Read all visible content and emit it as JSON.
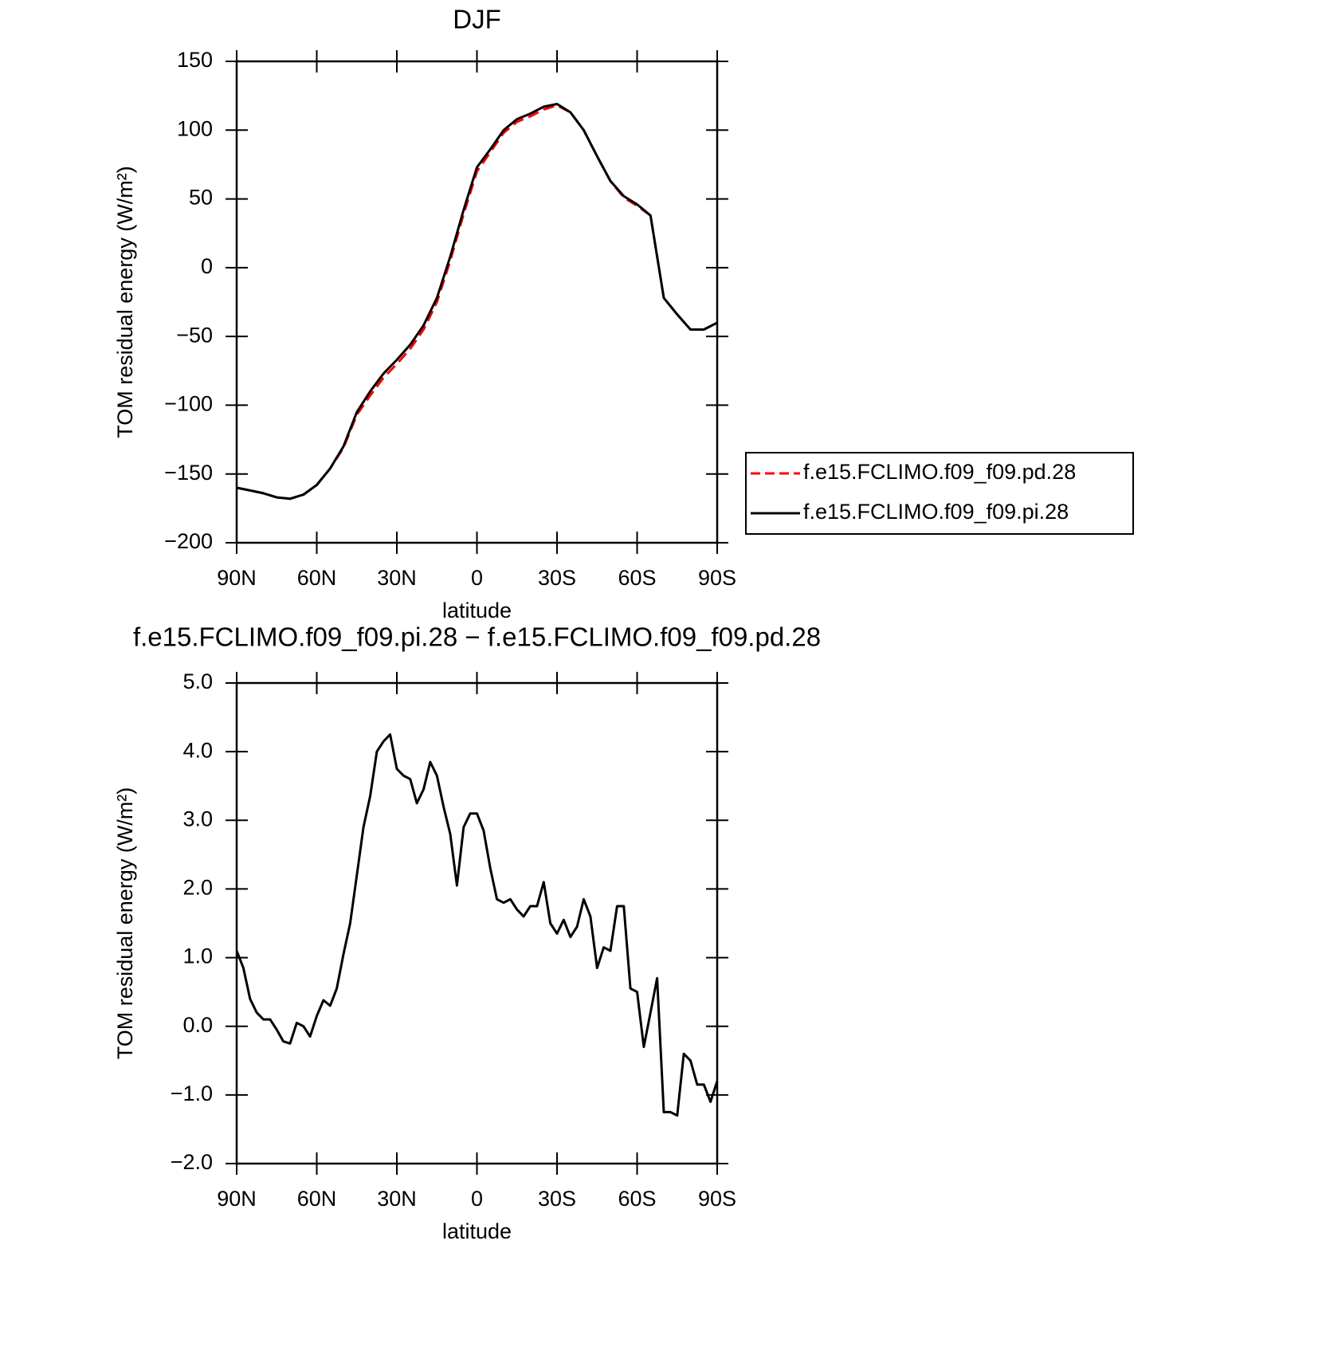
{
  "chart_data": [
    {
      "type": "line",
      "title": "DJF",
      "xlabel": "latitude",
      "ylabel": "TOM residual energy (W/m²)",
      "x": [
        90,
        85,
        80,
        75,
        70,
        65,
        60,
        55,
        50,
        45,
        40,
        35,
        30,
        25,
        20,
        15,
        10,
        5,
        0,
        -5,
        -10,
        -15,
        -20,
        -25,
        -30,
        -35,
        -40,
        -45,
        -50,
        -55,
        -60,
        -65,
        -70,
        -75,
        -80,
        -85,
        -90
      ],
      "series": [
        {
          "name": "f.e15.FCLIMO.f09_f09.pd.28",
          "color": "#ff0000",
          "dashed": true,
          "values": [
            -160,
            -162,
            -164,
            -167,
            -168,
            -165,
            -158,
            -146,
            -131,
            -107,
            -93,
            -80,
            -70,
            -59,
            -45,
            -25,
            5,
            39,
            70,
            84,
            98,
            106,
            110,
            115,
            118,
            113,
            100,
            81,
            63,
            51,
            45,
            38,
            -22,
            -34,
            -45,
            -45,
            -40
          ]
        },
        {
          "name": "f.e15.FCLIMO.f09_f09.pi.28",
          "color": "#000000",
          "dashed": false,
          "values": [
            -160,
            -162,
            -164,
            -167,
            -168,
            -165,
            -158,
            -146,
            -130,
            -105,
            -90,
            -77,
            -67,
            -56,
            -42,
            -22,
            8,
            42,
            73,
            86,
            100,
            108,
            112,
            117,
            119,
            113,
            100,
            81,
            63,
            52,
            46,
            38,
            -22,
            -34,
            -45,
            -45,
            -40
          ]
        }
      ],
      "xlim": [
        90,
        -90
      ],
      "xticks": [
        {
          "value": 90,
          "label": "90N"
        },
        {
          "value": 60,
          "label": "60N"
        },
        {
          "value": 30,
          "label": "30N"
        },
        0,
        {
          "value": -30,
          "label": "30S"
        },
        {
          "value": -60,
          "label": "60S"
        },
        {
          "value": -90,
          "label": "90S"
        }
      ],
      "ylim": [
        -200,
        150
      ],
      "yticks": [
        {
          "value": -200,
          "label": "−200"
        },
        {
          "value": -150,
          "label": "−150"
        },
        {
          "value": -100,
          "label": "−100"
        },
        {
          "value": -50,
          "label": "−50"
        },
        0,
        50,
        100,
        150
      ],
      "legend": "outside-right"
    },
    {
      "type": "line",
      "title": "f.e15.FCLIMO.f09_f09.pi.28 − f.e15.FCLIMO.f09_f09.pd.28",
      "xlabel": "latitude",
      "ylabel": "TOM residual energy (W/m²)",
      "x": [
        90,
        87.5,
        85,
        82.5,
        80,
        77.5,
        75,
        72.5,
        70,
        67.5,
        65,
        62.5,
        60,
        57.5,
        55,
        52.5,
        50,
        47.5,
        45,
        42.5,
        40,
        37.5,
        35,
        32.5,
        30,
        27.5,
        25,
        22.5,
        20,
        17.5,
        15,
        12.5,
        10,
        7.5,
        5,
        2.5,
        0,
        -2.5,
        -5,
        -7.5,
        -10,
        -12.5,
        -15,
        -17.5,
        -20,
        -22.5,
        -25,
        -27.5,
        -30,
        -32.5,
        -35,
        -37.5,
        -40,
        -42.5,
        -45,
        -47.5,
        -50,
        -52.5,
        -55,
        -57.5,
        -60,
        -62.5,
        -65,
        -67.5,
        -70,
        -72.5,
        -75,
        -77.5,
        -80,
        -82.5,
        -85,
        -87.5,
        -90
      ],
      "series": [
        {
          "color": "#000000",
          "dashed": false,
          "values": [
            1.1,
            0.85,
            0.4,
            0.2,
            0.1,
            0.1,
            -0.05,
            -0.22,
            -0.25,
            0.05,
            0.0,
            -0.15,
            0.15,
            0.38,
            0.3,
            0.55,
            1.05,
            1.5,
            2.2,
            2.9,
            3.35,
            4.0,
            4.15,
            4.25,
            3.75,
            3.65,
            3.6,
            3.25,
            3.45,
            3.85,
            3.65,
            3.2,
            2.8,
            2.05,
            2.9,
            3.1,
            3.1,
            2.85,
            2.3,
            1.85,
            1.8,
            1.85,
            1.7,
            1.6,
            1.75,
            1.75,
            2.1,
            1.5,
            1.35,
            1.55,
            1.3,
            1.45,
            1.85,
            1.6,
            0.85,
            1.15,
            1.1,
            1.75,
            1.75,
            0.55,
            0.5,
            -0.3,
            0.2,
            0.7,
            -1.25,
            -1.25,
            -1.3,
            -0.4,
            -0.5,
            -0.85,
            -0.85,
            -1.1,
            -0.8
          ]
        }
      ],
      "xlim": [
        90,
        -90
      ],
      "xticks": [
        {
          "value": 90,
          "label": "90N"
        },
        {
          "value": 60,
          "label": "60N"
        },
        {
          "value": 30,
          "label": "30N"
        },
        0,
        {
          "value": -30,
          "label": "30S"
        },
        {
          "value": -60,
          "label": "60S"
        },
        {
          "value": -90,
          "label": "90S"
        }
      ],
      "ylim": [
        -2,
        5
      ],
      "yticks": [
        {
          "value": -2,
          "label": "−2.0"
        },
        {
          "value": -1,
          "label": "−1.0"
        },
        {
          "value": 0,
          "label": "0.0"
        },
        {
          "value": 1,
          "label": "1.0"
        },
        {
          "value": 2,
          "label": "2.0"
        },
        {
          "value": 3,
          "label": "3.0"
        },
        {
          "value": 4,
          "label": "4.0"
        },
        {
          "value": 5,
          "label": "5.0"
        }
      ]
    }
  ]
}
